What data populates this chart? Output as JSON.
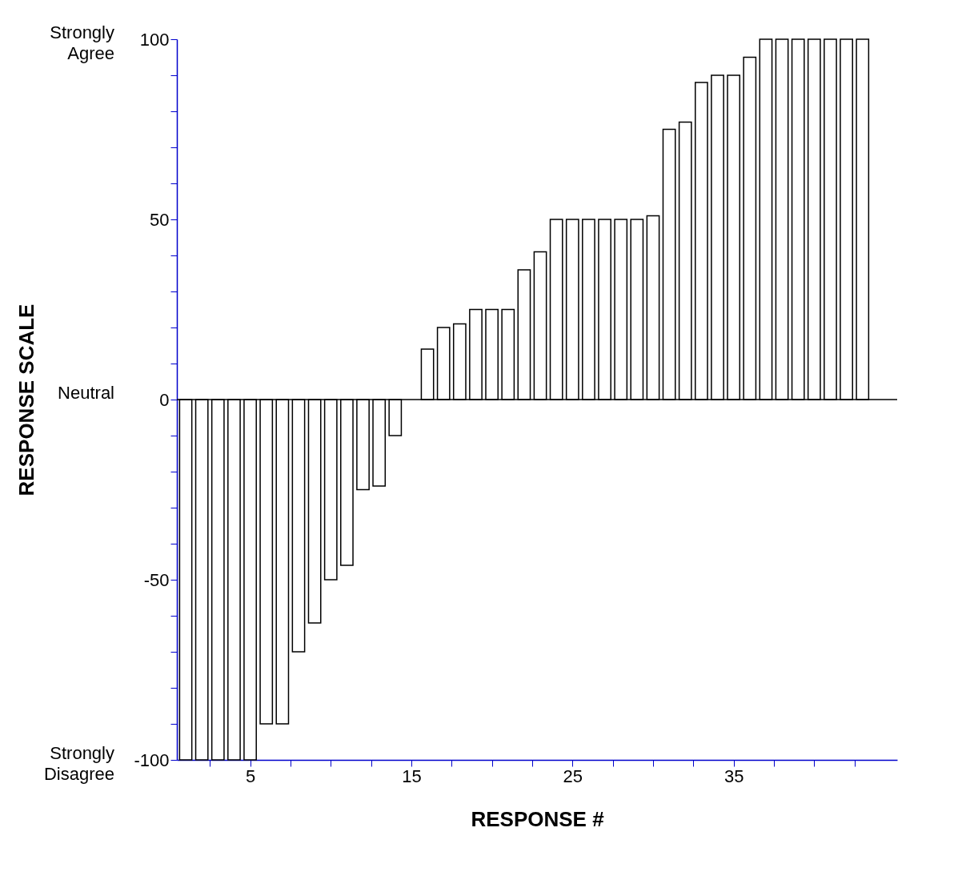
{
  "chart_data": {
    "type": "bar",
    "xlabel": "RESPONSE #",
    "ylabel": "RESPONSE SCALE",
    "x": [
      1,
      2,
      3,
      4,
      5,
      6,
      7,
      8,
      9,
      10,
      11,
      12,
      13,
      14,
      15,
      16,
      17,
      18,
      19,
      20,
      21,
      22,
      23,
      24,
      25,
      26,
      27,
      28,
      29,
      30,
      31,
      32,
      33,
      34,
      35,
      36,
      37,
      38,
      39,
      40,
      41,
      42,
      43
    ],
    "values": [
      -100,
      -100,
      -100,
      -100,
      -100,
      -90,
      -90,
      -70,
      -62,
      -50,
      -46,
      -25,
      -24,
      -10,
      null,
      14,
      20,
      21,
      25,
      25,
      25,
      36,
      41,
      50,
      50,
      50,
      50,
      50,
      50,
      51,
      75,
      77,
      88,
      90,
      90,
      95,
      100,
      100,
      100,
      100,
      100,
      100,
      100
    ],
    "color": "#ffffff",
    "xlim": [
      0.7,
      44.9
    ],
    "xticks": [
      {
        "value": 2.5,
        "label": null
      },
      5,
      {
        "value": 7.5,
        "label": null
      },
      {
        "value": 10,
        "label": null
      },
      {
        "value": 12.5,
        "label": null
      },
      15,
      {
        "value": 17.5,
        "label": null
      },
      {
        "value": 20,
        "label": null
      },
      {
        "value": 22.5,
        "label": null
      },
      25,
      {
        "value": 27.5,
        "label": null
      },
      {
        "value": 30,
        "label": null
      },
      {
        "value": 32.5,
        "label": null
      },
      35,
      {
        "value": 37.5,
        "label": null
      },
      {
        "value": 40,
        "label": null
      },
      {
        "value": 42.5,
        "label": null
      }
    ],
    "ylim": [
      -100,
      100
    ],
    "yticks": [
      -100,
      {
        "value": -90,
        "label": null
      },
      {
        "value": -80,
        "label": null
      },
      {
        "value": -70,
        "label": null
      },
      {
        "value": -60,
        "label": null
      },
      -50,
      {
        "value": -40,
        "label": null
      },
      {
        "value": -30,
        "label": null
      },
      {
        "value": -20,
        "label": null
      },
      {
        "value": -10,
        "label": null
      },
      0,
      {
        "value": 10,
        "label": null
      },
      {
        "value": 20,
        "label": null
      },
      {
        "value": 30,
        "label": null
      },
      {
        "value": 40,
        "label": null
      },
      50,
      {
        "value": 60,
        "label": null
      },
      {
        "value": 70,
        "label": null
      },
      {
        "value": 80,
        "label": null
      },
      {
        "value": 90,
        "label": null
      },
      100
    ],
    "ref_lines": [
      {
        "axis": "y",
        "value": 0,
        "color": "#000000"
      }
    ],
    "annotations": [
      "Strongly Agree",
      "Neutral",
      "Strongly Disagree"
    ],
    "grid": false
  }
}
